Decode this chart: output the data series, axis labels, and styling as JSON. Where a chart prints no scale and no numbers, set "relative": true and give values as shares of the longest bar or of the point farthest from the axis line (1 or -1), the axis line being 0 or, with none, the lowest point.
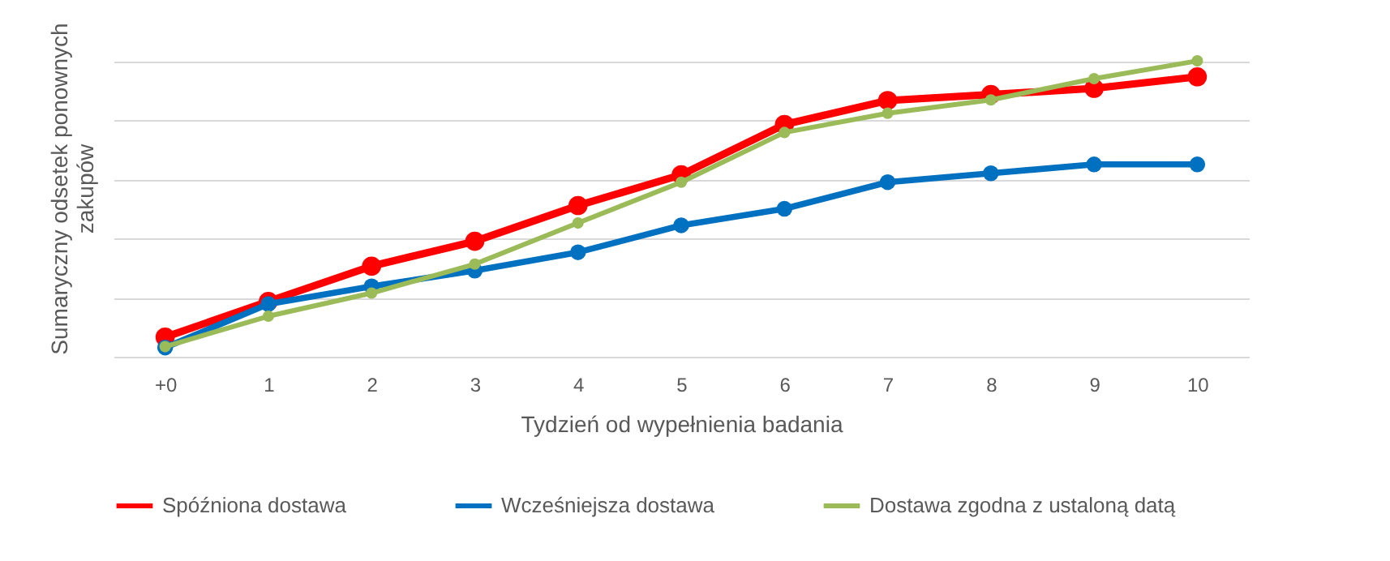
{
  "chart_data": {
    "type": "line",
    "xlabel": "Tydzień od wypełnienia badania",
    "ylabel": "Sumaryczny odsetek ponownych zakupów",
    "categories": [
      "+0",
      "1",
      "2",
      "3",
      "4",
      "5",
      "6",
      "7",
      "8",
      "9",
      "10"
    ],
    "relative": true,
    "grid": "y",
    "legend": "bottom",
    "marker": "circle",
    "series": [
      {
        "name": "Spóźniona dostawa",
        "color": "#ff0000",
        "values": [
          0.066,
          0.187,
          0.306,
          0.39,
          0.511,
          0.615,
          0.785,
          0.866,
          0.886,
          0.907,
          0.946
        ]
      },
      {
        "name": "Wcześniejsza dostawa",
        "color": "#0070c0",
        "values": [
          0.031,
          0.178,
          0.238,
          0.291,
          0.353,
          0.444,
          0.5,
          0.59,
          0.62,
          0.65,
          0.65
        ]
      },
      {
        "name": "Dostawa zgodna z ustaloną datą",
        "color": "#9bbb59",
        "values": [
          0.034,
          0.137,
          0.215,
          0.313,
          0.452,
          0.59,
          0.758,
          0.823,
          0.868,
          0.94,
          1
        ]
      }
    ]
  }
}
